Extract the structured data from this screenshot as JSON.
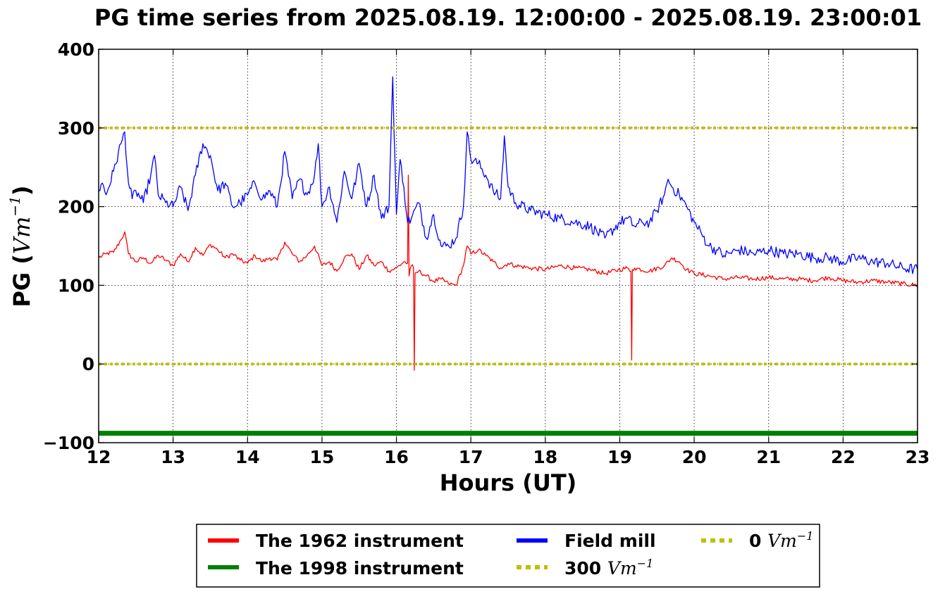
{
  "chart_data": {
    "type": "line",
    "title": "PG time series from 2025.08.19. 12:00:00 - 2025.08.19. 23:00:01",
    "xlabel": "Hours (UT)",
    "ylabel_prefix": "PG (",
    "ylabel_math": "Vm",
    "ylabel_exp": "−1",
    "ylabel_suffix": ")",
    "xlim": [
      12,
      23
    ],
    "ylim": [
      -100,
      400
    ],
    "xticks": [
      "12",
      "13",
      "14",
      "15",
      "16",
      "17",
      "18",
      "19",
      "20",
      "21",
      "22",
      "23"
    ],
    "yticks": [
      "400",
      "300",
      "200",
      "100",
      "0",
      "−100"
    ],
    "grid": true,
    "legend_position": "bottom-center",
    "series": [
      {
        "name": "The 1962 instrument",
        "color": "#ff0000",
        "style": "solid",
        "x": [
          12.0,
          12.1,
          12.2,
          12.3,
          12.35,
          12.4,
          12.5,
          12.6,
          12.7,
          12.8,
          12.9,
          13.0,
          13.1,
          13.2,
          13.3,
          13.4,
          13.5,
          13.6,
          13.7,
          13.8,
          13.9,
          14.0,
          14.1,
          14.2,
          14.3,
          14.4,
          14.5,
          14.6,
          14.7,
          14.8,
          14.9,
          15.0,
          15.1,
          15.2,
          15.3,
          15.4,
          15.5,
          15.6,
          15.7,
          15.8,
          15.9,
          16.0,
          16.1,
          16.15,
          16.16,
          16.17,
          16.2,
          16.23,
          16.24,
          16.25,
          16.3,
          16.4,
          16.5,
          16.6,
          16.7,
          16.8,
          16.9,
          16.95,
          17.0,
          17.1,
          17.2,
          17.3,
          17.4,
          17.5,
          17.6,
          17.8,
          18.0,
          18.2,
          18.4,
          18.6,
          18.8,
          19.0,
          19.1,
          19.15,
          19.16,
          19.17,
          19.2,
          19.4,
          19.6,
          19.7,
          19.8,
          19.9,
          20.0,
          20.2,
          20.4,
          20.6,
          20.8,
          21.0,
          21.2,
          21.4,
          21.6,
          21.8,
          22.0,
          22.2,
          22.4,
          22.6,
          22.8,
          23.0
        ],
        "values": [
          135,
          140,
          142,
          158,
          168,
          140,
          130,
          135,
          128,
          138,
          132,
          125,
          140,
          130,
          148,
          138,
          152,
          145,
          135,
          140,
          132,
          128,
          138,
          130,
          135,
          132,
          155,
          140,
          130,
          138,
          150,
          125,
          130,
          118,
          135,
          140,
          120,
          138,
          125,
          130,
          118,
          122,
          130,
          128,
          240,
          112,
          125,
          122,
          -8,
          115,
          118,
          112,
          105,
          108,
          102,
          100,
          125,
          150,
          140,
          145,
          138,
          130,
          122,
          128,
          125,
          122,
          120,
          125,
          122,
          120,
          115,
          120,
          122,
          118,
          5,
          120,
          122,
          118,
          125,
          135,
          130,
          120,
          115,
          112,
          108,
          110,
          108,
          110,
          108,
          108,
          106,
          110,
          106,
          104,
          106,
          104,
          102,
          100
        ]
      },
      {
        "name": "The 1998 instrument",
        "color": "#008000",
        "style": "solid",
        "x": [
          12,
          23
        ],
        "values": [
          -88,
          -88
        ]
      },
      {
        "name": "Field mill",
        "color": "#0000ff",
        "style": "solid",
        "x": [
          12.0,
          12.05,
          12.1,
          12.2,
          12.3,
          12.35,
          12.4,
          12.45,
          12.5,
          12.6,
          12.7,
          12.75,
          12.8,
          12.9,
          13.0,
          13.1,
          13.2,
          13.3,
          13.4,
          13.5,
          13.6,
          13.7,
          13.8,
          13.9,
          14.0,
          14.1,
          14.2,
          14.3,
          14.4,
          14.5,
          14.6,
          14.7,
          14.8,
          14.9,
          14.95,
          15.0,
          15.1,
          15.2,
          15.3,
          15.4,
          15.5,
          15.6,
          15.7,
          15.8,
          15.9,
          15.95,
          16.0,
          16.05,
          16.1,
          16.15,
          16.2,
          16.3,
          16.4,
          16.5,
          16.6,
          16.7,
          16.8,
          16.9,
          16.95,
          17.0,
          17.1,
          17.2,
          17.3,
          17.4,
          17.45,
          17.5,
          17.6,
          17.8,
          18.0,
          18.2,
          18.4,
          18.6,
          18.8,
          19.0,
          19.1,
          19.2,
          19.3,
          19.4,
          19.5,
          19.6,
          19.65,
          19.7,
          19.8,
          19.9,
          20.0,
          20.1,
          20.2,
          20.3,
          20.4,
          20.6,
          20.8,
          21.0,
          21.2,
          21.4,
          21.6,
          21.8,
          22.0,
          22.2,
          22.4,
          22.6,
          22.8,
          23.0
        ],
        "values": [
          220,
          230,
          215,
          245,
          280,
          295,
          230,
          210,
          220,
          205,
          240,
          265,
          215,
          205,
          200,
          225,
          195,
          240,
          280,
          265,
          220,
          230,
          200,
          205,
          215,
          230,
          210,
          220,
          200,
          270,
          210,
          235,
          215,
          240,
          280,
          200,
          225,
          180,
          245,
          210,
          255,
          200,
          240,
          185,
          200,
          365,
          190,
          260,
          225,
          180,
          185,
          205,
          160,
          190,
          150,
          150,
          160,
          200,
          295,
          260,
          255,
          240,
          220,
          210,
          290,
          225,
          205,
          195,
          190,
          185,
          180,
          175,
          160,
          180,
          185,
          175,
          180,
          180,
          195,
          215,
          235,
          225,
          215,
          200,
          180,
          165,
          150,
          145,
          138,
          145,
          140,
          145,
          140,
          140,
          135,
          135,
          130,
          135,
          130,
          128,
          122,
          120
        ]
      },
      {
        "name": "300 Vm⁻¹",
        "label_number": "300",
        "color": "#bfbf00",
        "style": "dotted",
        "x": [
          12,
          23
        ],
        "values": [
          300,
          300
        ]
      },
      {
        "name": "0 Vm⁻¹",
        "label_number": "0",
        "color": "#bfbf00",
        "style": "dotted",
        "x": [
          12,
          23
        ],
        "values": [
          0,
          0
        ]
      }
    ],
    "legend": {
      "math": "Vm",
      "exp": "−1",
      "col1": [
        "The 1962 instrument",
        "The 1998 instrument"
      ],
      "col2": [
        "Field mill",
        "300"
      ],
      "col3": [
        "0"
      ]
    }
  }
}
